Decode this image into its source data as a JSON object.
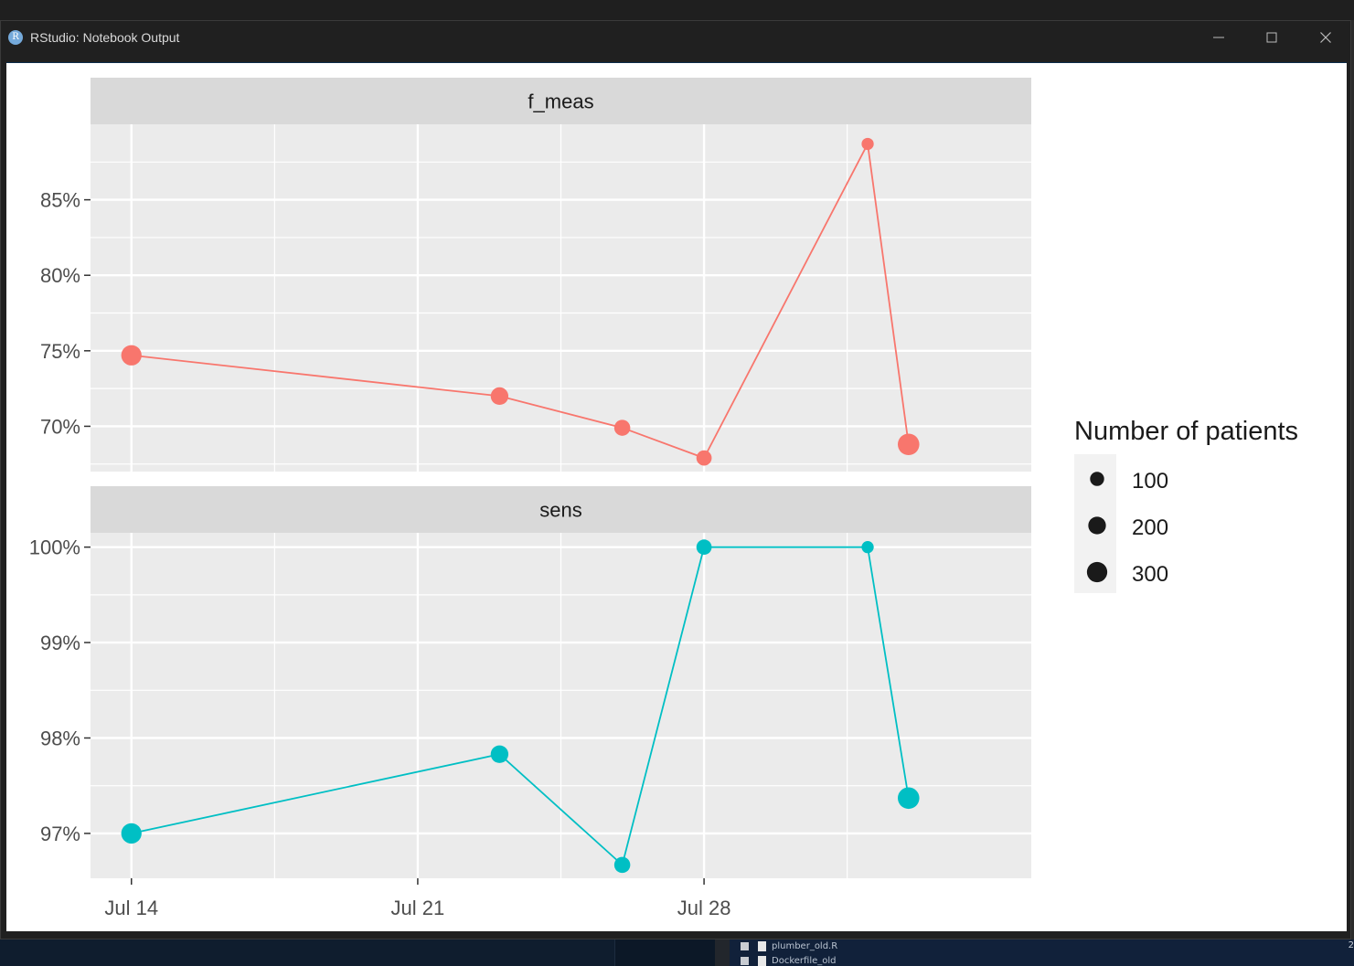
{
  "window": {
    "title": "RStudio: Notebook Output",
    "icon_letter": "R",
    "controls": {
      "minimize": "minimize-icon",
      "maximize": "maximize-icon",
      "close": "close-icon"
    }
  },
  "background_files": [
    {
      "name": "plumber_old.R"
    },
    {
      "name": "Dockerfile_old"
    }
  ],
  "edge_text": "2",
  "chart_data": {
    "type": "line",
    "facets": [
      "f_meas",
      "sens"
    ],
    "x_tick_labels": [
      "Jul 14",
      "Jul 21",
      "Jul 28"
    ],
    "x_ticks": [
      "2023-07-14",
      "2023-07-21",
      "2023-07-28"
    ],
    "x_range": [
      "2023-07-13",
      "2023-08-05"
    ],
    "x": [
      "2023-07-14",
      "2023-07-23",
      "2023-07-26",
      "2023-07-28",
      "2023-08-01",
      "2023-08-02"
    ],
    "series": [
      {
        "name": "f_meas",
        "color": "#f8766d",
        "values": [
          74.7,
          72.0,
          69.9,
          67.9,
          88.7,
          68.8
        ],
        "patients": [
          300,
          200,
          150,
          130,
          60,
          350
        ],
        "y_ticks": [
          70,
          75,
          80,
          85
        ],
        "y_tick_labels": [
          "70%",
          "75%",
          "80%",
          "85%"
        ],
        "ylim": [
          67.0,
          90.0
        ]
      },
      {
        "name": "sens",
        "color": "#00bfc4",
        "values": [
          97.0,
          97.83,
          96.67,
          100.0,
          100.0,
          97.37
        ],
        "patients": [
          300,
          200,
          150,
          130,
          60,
          350
        ],
        "y_ticks": [
          97,
          98,
          99,
          100
        ],
        "y_tick_labels": [
          "97%",
          "98%",
          "99%",
          "100%"
        ],
        "ylim": [
          96.53,
          100.15
        ]
      }
    ],
    "legend": {
      "title": "Number of patients",
      "position": "right",
      "items": [
        {
          "label": "100",
          "value": 100
        },
        {
          "label": "200",
          "value": 200
        },
        {
          "label": "300",
          "value": 300
        }
      ]
    },
    "grid": true,
    "xlabel": "",
    "ylabel": ""
  }
}
